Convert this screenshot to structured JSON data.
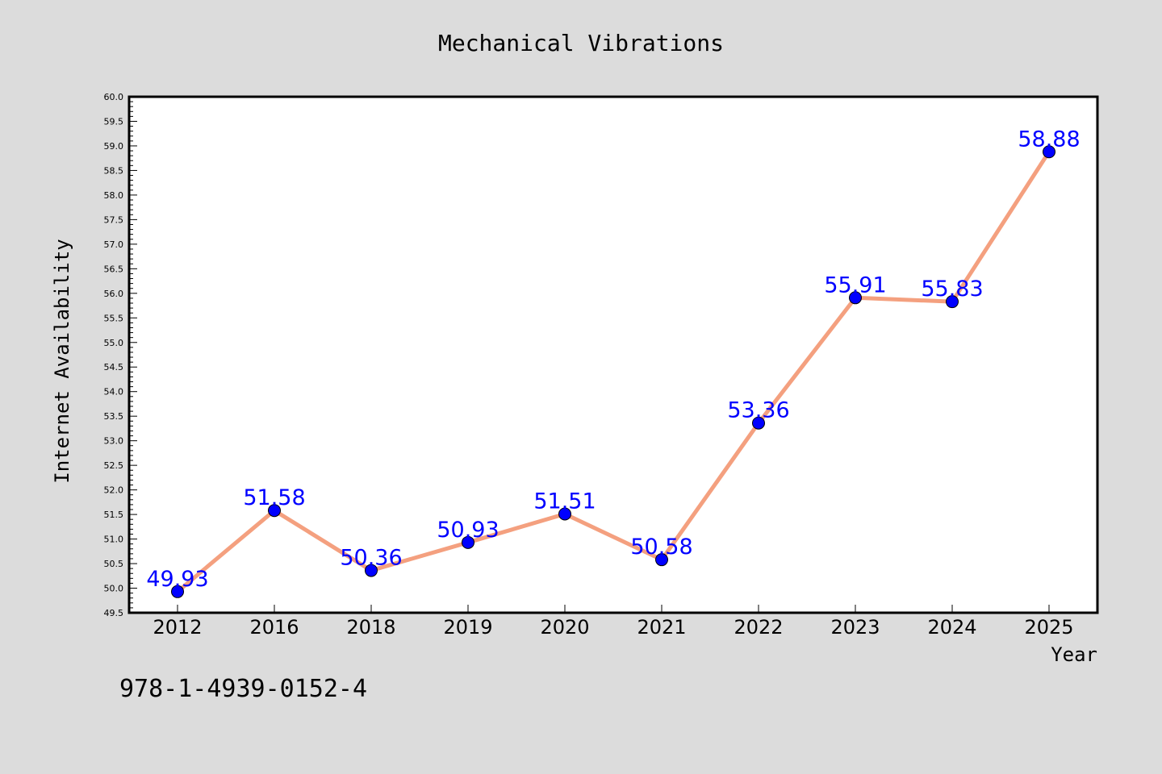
{
  "chart_data": {
    "type": "line",
    "title": "Mechanical Vibrations",
    "xlabel": "Year",
    "ylabel": "Internet Availability",
    "categories": [
      "2012",
      "2016",
      "2018",
      "2019",
      "2020",
      "2021",
      "2022",
      "2023",
      "2024",
      "2025"
    ],
    "series": [
      {
        "values": [
          49.93,
          51.58,
          50.36,
          50.93,
          51.51,
          50.58,
          53.36,
          55.91,
          55.83,
          58.88
        ],
        "line_color": "#f4a07f",
        "marker_color": "#0000ff",
        "label_color": "#0000ff"
      }
    ],
    "ylim": [
      49.5,
      60.0
    ],
    "y_ticks": [
      "49.5",
      "50.0",
      "50.5",
      "51.0",
      "51.5",
      "52.0",
      "52.5",
      "53.0",
      "53.5",
      "54.0",
      "54.5",
      "55.0",
      "55.5",
      "56.0",
      "56.5",
      "57.0",
      "57.5",
      "58.0",
      "58.5",
      "59.0",
      "59.5",
      "60.0"
    ],
    "data_labels": [
      "49.93",
      "51.58",
      "50.36",
      "50.93",
      "51.51",
      "50.58",
      "53.36",
      "55.91",
      "55.83",
      "58.88"
    ],
    "grid": false,
    "legend": "none"
  },
  "annotation": {
    "isbn": "978-1-4939-0152-4"
  },
  "colors": {
    "background": "#dcdcdc",
    "plot_background": "#ffffff",
    "axis": "#000000"
  }
}
